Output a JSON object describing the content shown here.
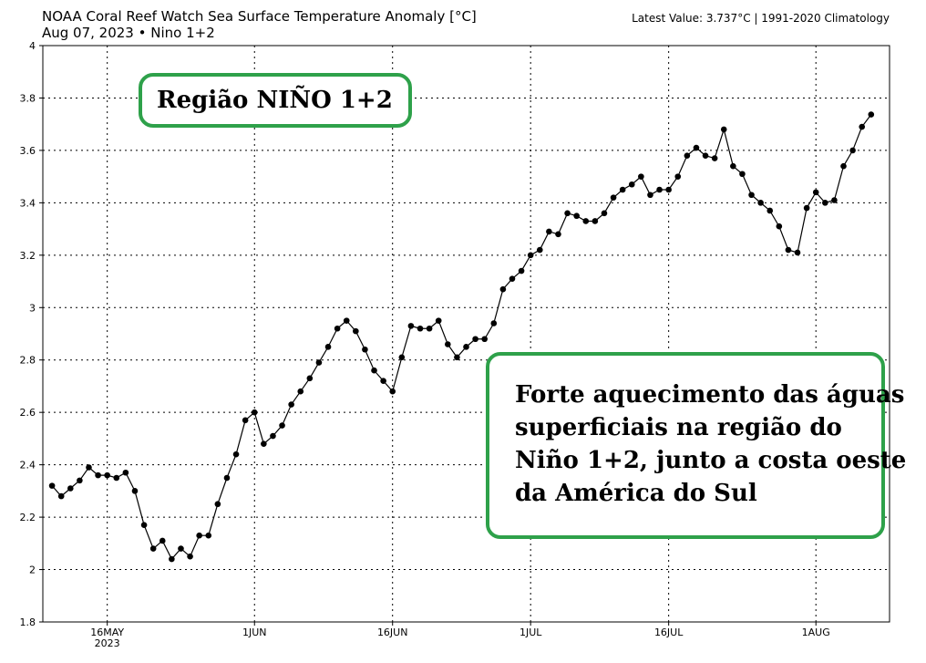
{
  "header": {
    "title": "NOAA Coral Reef Watch Sea Surface Temperature Anomaly [°C]",
    "subtitle": "Aug 07, 2023  •  Nino 1+2",
    "latest": "Latest Value: 3.737°C | 1991-2020 Climatology"
  },
  "annotations": {
    "region": "Região NIÑO 1+2",
    "description_lines": [
      "Forte aquecimento das águas",
      "superficiais na região do",
      "Niño 1+2, junto a costa oeste",
      "da América do Sul"
    ]
  },
  "colors": {
    "annotation_border": "#2ea14a",
    "series": "#000000"
  },
  "chart_data": {
    "type": "line",
    "title": "NOAA Coral Reef Watch Sea Surface Temperature Anomaly [°C]",
    "xlabel": "",
    "ylabel": "",
    "ylim": [
      1.8,
      4.0
    ],
    "xlim": [
      "2023-05-09",
      "2023-08-09"
    ],
    "grid": true,
    "y_ticks": [
      "1.8",
      "2",
      "2.2",
      "2.4",
      "2.6",
      "2.8",
      "3",
      "3.2",
      "3.4",
      "3.6",
      "3.8",
      "4"
    ],
    "x_ticks": [
      {
        "date": "2023-05-16",
        "label": "16MAY",
        "sublabel": "2023"
      },
      {
        "date": "2023-06-01",
        "label": "1JUN",
        "sublabel": ""
      },
      {
        "date": "2023-06-16",
        "label": "16JUN",
        "sublabel": ""
      },
      {
        "date": "2023-07-01",
        "label": "1JUL",
        "sublabel": ""
      },
      {
        "date": "2023-07-16",
        "label": "16JUL",
        "sublabel": ""
      },
      {
        "date": "2023-08-01",
        "label": "1AUG",
        "sublabel": ""
      }
    ],
    "series": [
      {
        "start_date": "2023-05-10",
        "values": [
          2.32,
          2.28,
          2.31,
          2.34,
          2.39,
          2.36,
          2.36,
          2.35,
          2.37,
          2.3,
          2.17,
          2.08,
          2.11,
          2.04,
          2.08,
          2.05,
          2.13,
          2.13,
          2.25,
          2.35,
          2.44,
          2.57,
          2.6,
          2.48,
          2.51,
          2.55,
          2.63,
          2.68,
          2.73,
          2.79,
          2.85,
          2.92,
          2.95,
          2.91,
          2.84,
          2.76,
          2.72,
          2.68,
          2.81,
          2.93,
          2.92,
          2.92,
          2.95,
          2.86,
          2.81,
          2.85,
          2.88,
          2.88,
          2.94,
          3.07,
          3.11,
          3.14,
          3.2,
          3.22,
          3.29,
          3.28,
          3.36,
          3.35,
          3.33,
          3.33,
          3.36,
          3.42,
          3.45,
          3.47,
          3.5,
          3.43,
          3.45,
          3.45,
          3.5,
          3.58,
          3.61,
          3.58,
          3.57,
          3.68,
          3.54,
          3.51,
          3.43,
          3.4,
          3.37,
          3.31,
          3.22,
          3.21,
          3.38,
          3.44,
          3.4,
          3.41,
          3.54,
          3.6,
          3.69,
          3.737
        ]
      }
    ]
  }
}
